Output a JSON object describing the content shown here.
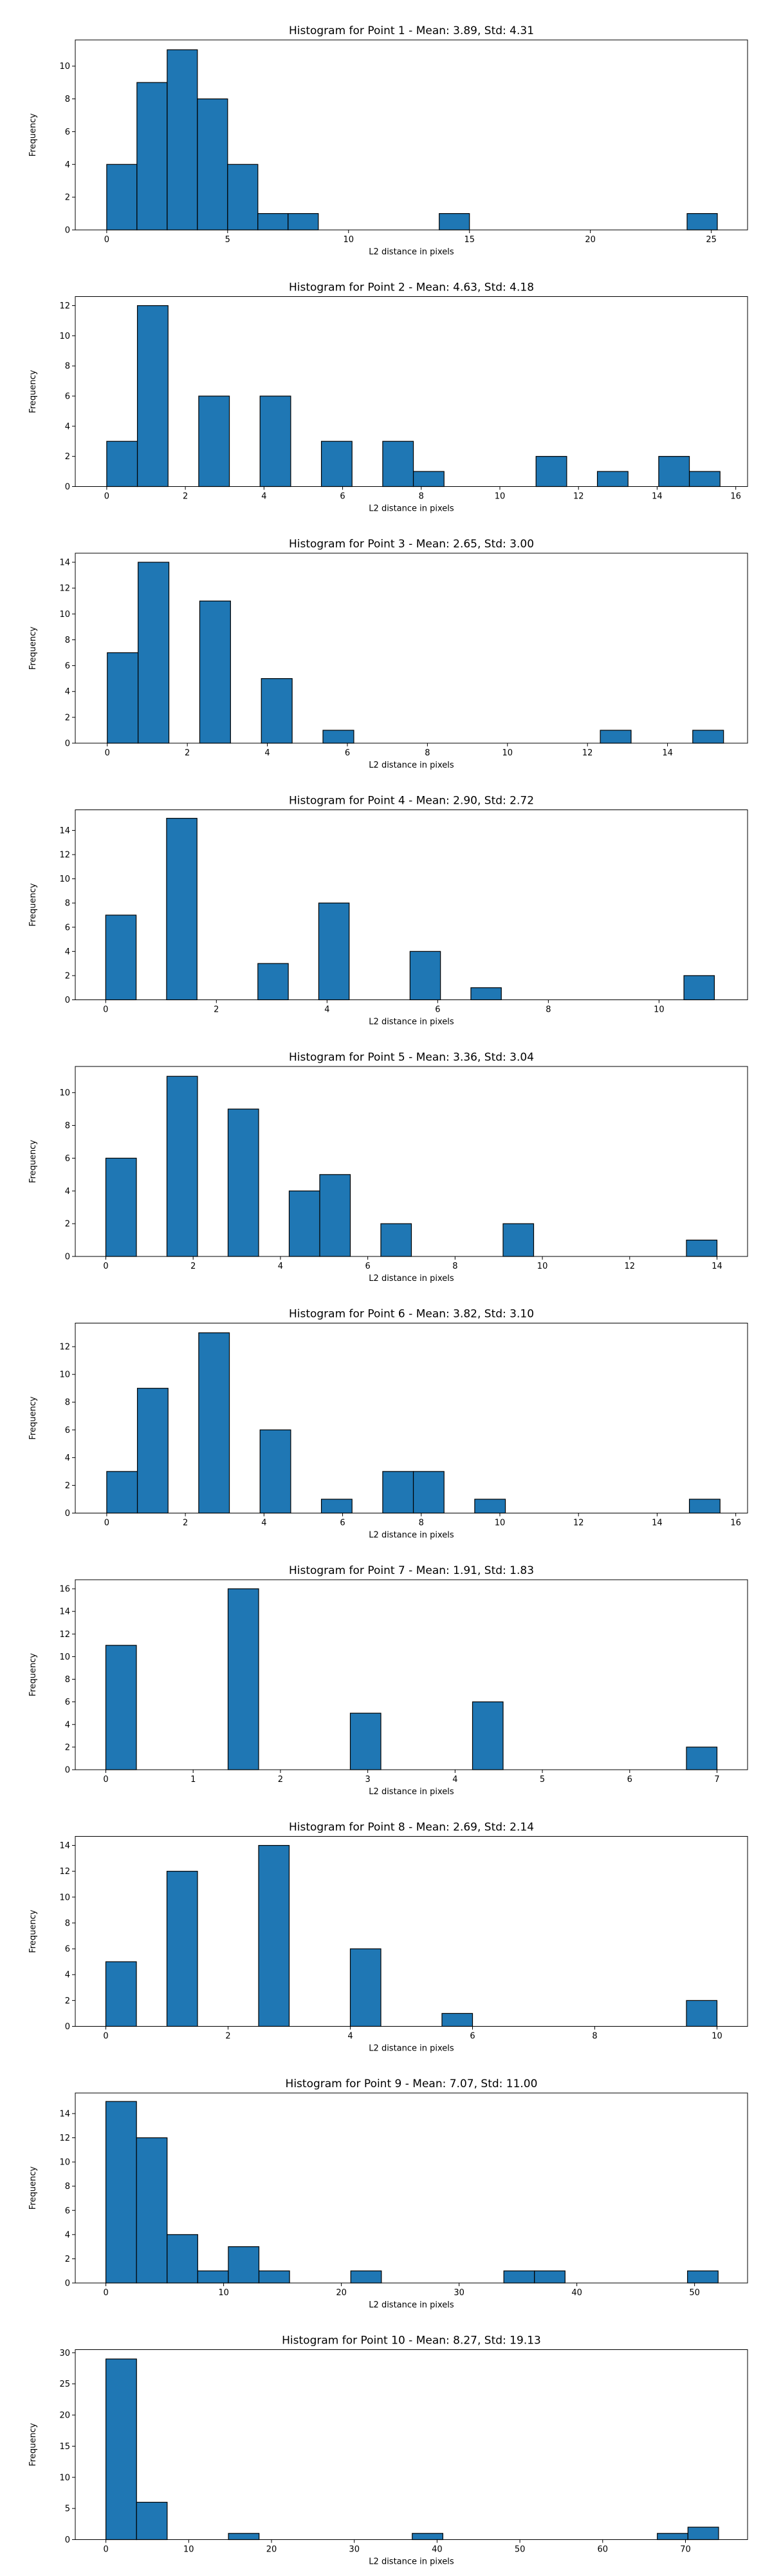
{
  "chart_data": [
    {
      "type": "bar",
      "title": "Histogram for Point 1 - Mean: 3.89, Std: 4.31",
      "xlabel": "L2 distance in pixels",
      "ylabel": "Frequency",
      "xlim": [
        -1.3,
        26.5
      ],
      "ylim": [
        0,
        11.6
      ],
      "xticks": [
        0,
        5,
        10,
        15,
        20,
        25
      ],
      "yticks": [
        0,
        2,
        4,
        6,
        8,
        10
      ],
      "bins": [
        {
          "x0": 0.0,
          "x1": 1.25,
          "count": 4
        },
        {
          "x0": 1.25,
          "x1": 2.5,
          "count": 9
        },
        {
          "x0": 2.5,
          "x1": 3.75,
          "count": 11
        },
        {
          "x0": 3.75,
          "x1": 5.0,
          "count": 8
        },
        {
          "x0": 5.0,
          "x1": 6.25,
          "count": 4
        },
        {
          "x0": 6.25,
          "x1": 7.5,
          "count": 1
        },
        {
          "x0": 7.5,
          "x1": 8.75,
          "count": 1
        },
        {
          "x0": 13.75,
          "x1": 15.0,
          "count": 1
        },
        {
          "x0": 24.0,
          "x1": 25.25,
          "count": 1
        }
      ]
    },
    {
      "type": "bar",
      "title": "Histogram for Point 2 - Mean: 4.63, Std: 4.18",
      "xlabel": "L2 distance in pixels",
      "ylabel": "Frequency",
      "xlim": [
        -0.8,
        16.3
      ],
      "ylim": [
        0,
        12.6
      ],
      "xticks": [
        0,
        2,
        4,
        6,
        8,
        10,
        12,
        14,
        16
      ],
      "yticks": [
        0,
        2,
        4,
        6,
        8,
        10,
        12
      ],
      "bins": [
        {
          "x0": 0.0,
          "x1": 0.78,
          "count": 3
        },
        {
          "x0": 0.78,
          "x1": 1.56,
          "count": 12
        },
        {
          "x0": 2.34,
          "x1": 3.12,
          "count": 6
        },
        {
          "x0": 3.9,
          "x1": 4.68,
          "count": 6
        },
        {
          "x0": 5.46,
          "x1": 6.24,
          "count": 3
        },
        {
          "x0": 7.02,
          "x1": 7.8,
          "count": 3
        },
        {
          "x0": 7.8,
          "x1": 8.58,
          "count": 1
        },
        {
          "x0": 10.92,
          "x1": 11.7,
          "count": 2
        },
        {
          "x0": 12.48,
          "x1": 13.26,
          "count": 1
        },
        {
          "x0": 14.04,
          "x1": 14.82,
          "count": 2
        },
        {
          "x0": 14.82,
          "x1": 15.6,
          "count": 1
        }
      ]
    },
    {
      "type": "bar",
      "title": "Histogram for Point 3 - Mean: 2.65, Std: 3.00",
      "xlabel": "L2 distance in pixels",
      "ylabel": "Frequency",
      "xlim": [
        -0.8,
        16.0
      ],
      "ylim": [
        0,
        14.7
      ],
      "xticks": [
        0,
        2,
        4,
        6,
        8,
        10,
        12,
        14
      ],
      "yticks": [
        0,
        2,
        4,
        6,
        8,
        10,
        12,
        14
      ],
      "bins": [
        {
          "x0": 0.0,
          "x1": 0.77,
          "count": 7
        },
        {
          "x0": 0.77,
          "x1": 1.54,
          "count": 14
        },
        {
          "x0": 2.31,
          "x1": 3.08,
          "count": 11
        },
        {
          "x0": 3.85,
          "x1": 4.62,
          "count": 5
        },
        {
          "x0": 5.39,
          "x1": 6.16,
          "count": 1
        },
        {
          "x0": 12.32,
          "x1": 13.09,
          "count": 1
        },
        {
          "x0": 14.63,
          "x1": 15.4,
          "count": 1
        }
      ]
    },
    {
      "type": "bar",
      "title": "Histogram for Point 4 - Mean: 2.90, Std: 2.72",
      "xlabel": "L2 distance in pixels",
      "ylabel": "Frequency",
      "xlim": [
        -0.55,
        11.6
      ],
      "ylim": [
        0,
        15.7
      ],
      "xticks": [
        0,
        2,
        4,
        6,
        8,
        10
      ],
      "yticks": [
        0,
        2,
        4,
        6,
        8,
        10,
        12,
        14
      ],
      "bins": [
        {
          "x0": 0.0,
          "x1": 0.55,
          "count": 7
        },
        {
          "x0": 1.1,
          "x1": 1.65,
          "count": 15
        },
        {
          "x0": 2.75,
          "x1": 3.3,
          "count": 3
        },
        {
          "x0": 3.85,
          "x1": 4.4,
          "count": 8
        },
        {
          "x0": 5.5,
          "x1": 6.05,
          "count": 4
        },
        {
          "x0": 6.6,
          "x1": 7.15,
          "count": 1
        },
        {
          "x0": 10.45,
          "x1": 11.0,
          "count": 2
        }
      ]
    },
    {
      "type": "bar",
      "title": "Histogram for Point 5 - Mean: 3.36, Std: 3.04",
      "xlabel": "L2 distance in pixels",
      "ylabel": "Frequency",
      "xlim": [
        -0.7,
        14.7
      ],
      "ylim": [
        0,
        11.6
      ],
      "xticks": [
        0,
        2,
        4,
        6,
        8,
        10,
        12,
        14
      ],
      "yticks": [
        0,
        2,
        4,
        6,
        8,
        10
      ],
      "bins": [
        {
          "x0": 0.0,
          "x1": 0.7,
          "count": 6
        },
        {
          "x0": 1.4,
          "x1": 2.1,
          "count": 11
        },
        {
          "x0": 2.8,
          "x1": 3.5,
          "count": 9
        },
        {
          "x0": 4.2,
          "x1": 4.9,
          "count": 4
        },
        {
          "x0": 4.9,
          "x1": 5.6,
          "count": 5
        },
        {
          "x0": 6.3,
          "x1": 7.0,
          "count": 2
        },
        {
          "x0": 9.1,
          "x1": 9.8,
          "count": 2
        },
        {
          "x0": 13.3,
          "x1": 14.0,
          "count": 1
        }
      ]
    },
    {
      "type": "bar",
      "title": "Histogram for Point 6 - Mean: 3.82, Std: 3.10",
      "xlabel": "L2 distance in pixels",
      "ylabel": "Frequency",
      "xlim": [
        -0.8,
        16.3
      ],
      "ylim": [
        0,
        13.7
      ],
      "xticks": [
        0,
        2,
        4,
        6,
        8,
        10,
        12,
        14,
        16
      ],
      "yticks": [
        0,
        2,
        4,
        6,
        8,
        10,
        12
      ],
      "bins": [
        {
          "x0": 0.0,
          "x1": 0.78,
          "count": 3
        },
        {
          "x0": 0.78,
          "x1": 1.56,
          "count": 9
        },
        {
          "x0": 2.34,
          "x1": 3.12,
          "count": 13
        },
        {
          "x0": 3.9,
          "x1": 4.68,
          "count": 6
        },
        {
          "x0": 5.46,
          "x1": 6.24,
          "count": 1
        },
        {
          "x0": 7.02,
          "x1": 7.8,
          "count": 3
        },
        {
          "x0": 7.8,
          "x1": 8.58,
          "count": 3
        },
        {
          "x0": 9.36,
          "x1": 10.14,
          "count": 1
        },
        {
          "x0": 14.82,
          "x1": 15.6,
          "count": 1
        }
      ]
    },
    {
      "type": "bar",
      "title": "Histogram for Point 7 - Mean: 1.91, Std: 1.83",
      "xlabel": "L2 distance in pixels",
      "ylabel": "Frequency",
      "xlim": [
        -0.35,
        7.35
      ],
      "ylim": [
        0,
        16.8
      ],
      "xticks": [
        0,
        1,
        2,
        3,
        4,
        5,
        6,
        7
      ],
      "yticks": [
        0,
        2,
        4,
        6,
        8,
        10,
        12,
        14,
        16
      ],
      "bins": [
        {
          "x0": 0.0,
          "x1": 0.35,
          "count": 11
        },
        {
          "x0": 1.4,
          "x1": 1.75,
          "count": 16
        },
        {
          "x0": 2.8,
          "x1": 3.15,
          "count": 5
        },
        {
          "x0": 4.2,
          "x1": 4.55,
          "count": 6
        },
        {
          "x0": 6.65,
          "x1": 7.0,
          "count": 2
        }
      ]
    },
    {
      "type": "bar",
      "title": "Histogram for Point 8 - Mean: 2.69, Std: 2.14",
      "xlabel": "L2 distance in pixels",
      "ylabel": "Frequency",
      "xlim": [
        -0.5,
        10.5
      ],
      "ylim": [
        0,
        14.7
      ],
      "xticks": [
        0,
        2,
        4,
        6,
        8,
        10
      ],
      "yticks": [
        0,
        2,
        4,
        6,
        8,
        10,
        12,
        14
      ],
      "bins": [
        {
          "x0": 0.0,
          "x1": 0.5,
          "count": 5
        },
        {
          "x0": 1.0,
          "x1": 1.5,
          "count": 12
        },
        {
          "x0": 2.5,
          "x1": 3.0,
          "count": 14
        },
        {
          "x0": 4.0,
          "x1": 4.5,
          "count": 6
        },
        {
          "x0": 5.5,
          "x1": 6.0,
          "count": 1
        },
        {
          "x0": 9.5,
          "x1": 10.0,
          "count": 2
        }
      ]
    },
    {
      "type": "bar",
      "title": "Histogram for Point 9 - Mean: 7.07, Std: 11.00",
      "xlabel": "L2 distance in pixels",
      "ylabel": "Frequency",
      "xlim": [
        -2.6,
        54.5
      ],
      "ylim": [
        0,
        15.7
      ],
      "xticks": [
        0,
        10,
        20,
        30,
        40,
        50
      ],
      "yticks": [
        0,
        2,
        4,
        6,
        8,
        10,
        12,
        14
      ],
      "bins": [
        {
          "x0": 0.0,
          "x1": 2.6,
          "count": 15
        },
        {
          "x0": 2.6,
          "x1": 5.2,
          "count": 12
        },
        {
          "x0": 5.2,
          "x1": 7.8,
          "count": 4
        },
        {
          "x0": 7.8,
          "x1": 10.4,
          "count": 1
        },
        {
          "x0": 10.4,
          "x1": 13.0,
          "count": 3
        },
        {
          "x0": 13.0,
          "x1": 15.6,
          "count": 1
        },
        {
          "x0": 20.8,
          "x1": 23.4,
          "count": 1
        },
        {
          "x0": 33.8,
          "x1": 36.4,
          "count": 1
        },
        {
          "x0": 36.4,
          "x1": 39.0,
          "count": 1
        },
        {
          "x0": 49.4,
          "x1": 52.0,
          "count": 1
        }
      ]
    },
    {
      "type": "bar",
      "title": "Histogram for Point 10 - Mean: 8.27, Std: 19.13",
      "xlabel": "L2 distance in pixels",
      "ylabel": "Frequency",
      "xlim": [
        -3.7,
        77.5
      ],
      "ylim": [
        0,
        30.5
      ],
      "xticks": [
        0,
        10,
        20,
        30,
        40,
        50,
        60,
        70
      ],
      "yticks": [
        0,
        5,
        10,
        15,
        20,
        25,
        30
      ],
      "bins": [
        {
          "x0": 0.0,
          "x1": 3.7,
          "count": 29
        },
        {
          "x0": 3.7,
          "x1": 7.4,
          "count": 6
        },
        {
          "x0": 14.8,
          "x1": 18.5,
          "count": 1
        },
        {
          "x0": 37.0,
          "x1": 40.7,
          "count": 1
        },
        {
          "x0": 66.6,
          "x1": 70.3,
          "count": 1
        },
        {
          "x0": 70.3,
          "x1": 74.0,
          "count": 2
        }
      ]
    }
  ]
}
